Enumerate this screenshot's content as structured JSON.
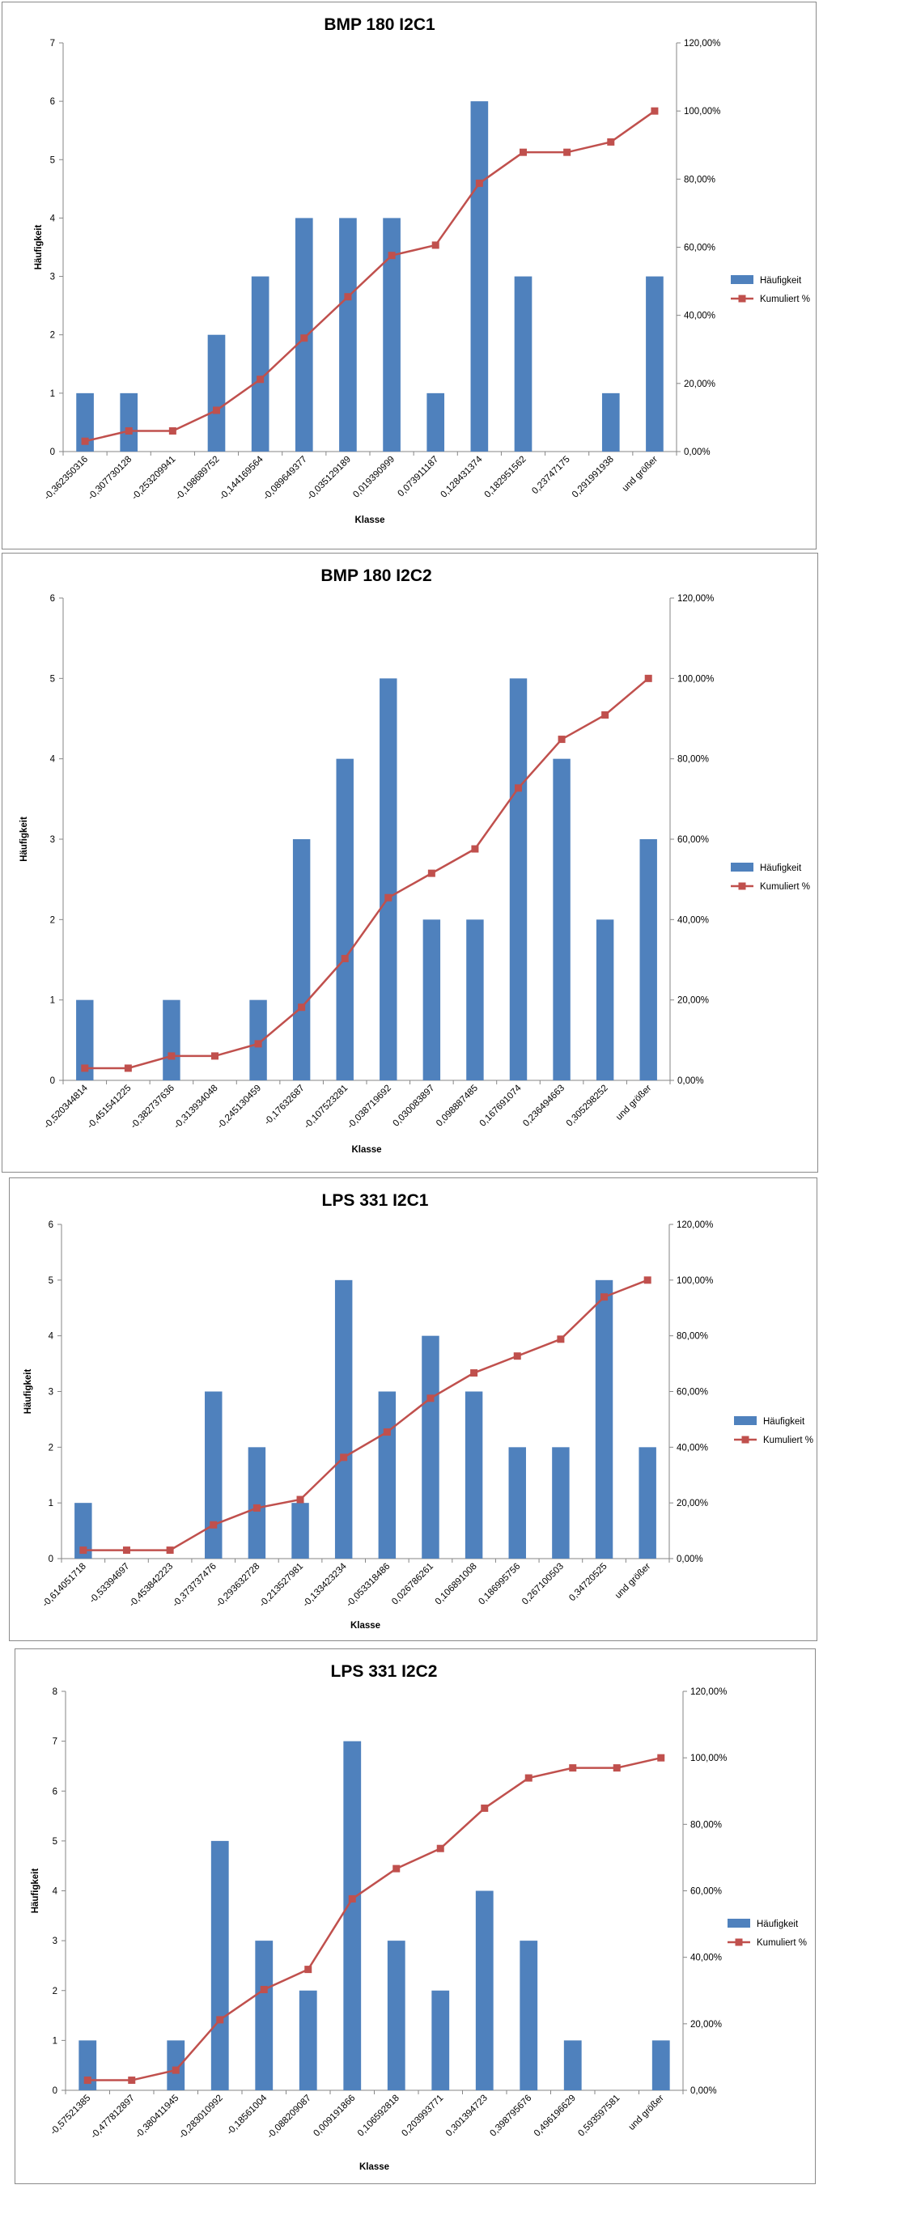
{
  "colors": {
    "bar": "#4f81bd",
    "line": "#c0504d",
    "axis": "#868686",
    "frame": "#8a8a8a"
  },
  "chart_data": [
    {
      "type": "bar+line",
      "title": "BMP 180 I2C1",
      "xlabel": "Klasse",
      "ylabel": "Häufigkeit",
      "ylim": [
        0,
        7
      ],
      "y2lim": [
        0,
        1.2
      ],
      "y_ticks": [
        "0",
        "1",
        "2",
        "3",
        "4",
        "5",
        "6",
        "7"
      ],
      "y2_ticks": [
        "0,00%",
        "20,00%",
        "40,00%",
        "60,00%",
        "80,00%",
        "100,00%",
        "120,00%"
      ],
      "categories": [
        "-0,362350316",
        "-0,307730128",
        "-0,253209941",
        "-0,198689752",
        "-0,144169564",
        "-0,089649377",
        "-0,035129189",
        "0,019390999",
        "0,073911187",
        "0,128431374",
        "0,182951562",
        "0,23747175",
        "0,291991938",
        "und größer"
      ],
      "series": [
        {
          "name": "Häufigkeit",
          "kind": "bar",
          "values": [
            1,
            1,
            0,
            2,
            3,
            4,
            4,
            4,
            1,
            6,
            3,
            0,
            1,
            3
          ]
        },
        {
          "name": "Kumuliert %",
          "kind": "line",
          "axis": "secondary",
          "values": [
            0.0303,
            0.0606,
            0.0606,
            0.1212,
            0.2121,
            0.3333,
            0.4545,
            0.5758,
            0.6061,
            0.7879,
            0.8788,
            0.8788,
            0.9091,
            1.0
          ]
        }
      ]
    },
    {
      "type": "bar+line",
      "title": "BMP 180 I2C2",
      "xlabel": "Klasse",
      "ylabel": "Häufigkeit",
      "ylim": [
        0,
        6
      ],
      "y2lim": [
        0,
        1.2
      ],
      "y_ticks": [
        "0",
        "1",
        "2",
        "3",
        "4",
        "5",
        "6"
      ],
      "y2_ticks": [
        "0,00%",
        "20,00%",
        "40,00%",
        "60,00%",
        "80,00%",
        "100,00%",
        "120,00%"
      ],
      "categories": [
        "-0,520344814",
        "-0,451541225",
        "-0,382737636",
        "-0,313934048",
        "-0,245130459",
        "-0,17632687",
        "-0,107523281",
        "-0,038719692",
        "0,030083897",
        "0,098887485",
        "0,167691074",
        "0,236494663",
        "0,305298252",
        "und größer"
      ],
      "series": [
        {
          "name": "Häufigkeit",
          "kind": "bar",
          "values": [
            1,
            0,
            1,
            0,
            1,
            3,
            4,
            5,
            2,
            2,
            5,
            4,
            2,
            3
          ]
        },
        {
          "name": "Kumuliert %",
          "kind": "line",
          "axis": "secondary",
          "values": [
            0.0303,
            0.0303,
            0.0606,
            0.0606,
            0.0909,
            0.1818,
            0.303,
            0.4545,
            0.5152,
            0.5758,
            0.7273,
            0.8485,
            0.9091,
            1.0
          ]
        }
      ]
    },
    {
      "type": "bar+line",
      "title": "LPS 331 I2C1",
      "xlabel": "Klasse",
      "ylabel": "Häufigkeit",
      "ylim": [
        0,
        6
      ],
      "y2lim": [
        0,
        1.2
      ],
      "y_ticks": [
        "0",
        "1",
        "2",
        "3",
        "4",
        "5",
        "6"
      ],
      "y2_ticks": [
        "0,00%",
        "20,00%",
        "40,00%",
        "60,00%",
        "80,00%",
        "100,00%",
        "120,00%"
      ],
      "categories": [
        "-0,614051718",
        "-0,53394697",
        "-0,453842223",
        "-0,373737476",
        "-0,293632728",
        "-0,213527981",
        "-0,133423234",
        "-0,053318486",
        "0,026786261",
        "0,106891008",
        "0,186995756",
        "0,267100503",
        "0,34720525",
        "und größer"
      ],
      "series": [
        {
          "name": "Häufigkeit",
          "kind": "bar",
          "values": [
            1,
            0,
            0,
            3,
            2,
            1,
            5,
            3,
            4,
            3,
            2,
            2,
            5,
            2
          ]
        },
        {
          "name": "Kumuliert %",
          "kind": "line",
          "axis": "secondary",
          "values": [
            0.0303,
            0.0303,
            0.0303,
            0.1212,
            0.1818,
            0.2121,
            0.3636,
            0.4545,
            0.5758,
            0.6667,
            0.7273,
            0.7879,
            0.9394,
            1.0
          ]
        }
      ]
    },
    {
      "type": "bar+line",
      "title": "LPS 331 I2C2",
      "xlabel": "Klasse",
      "ylabel": "Häufigkeit",
      "ylim": [
        0,
        8
      ],
      "y2lim": [
        0,
        1.2
      ],
      "y_ticks": [
        "0",
        "1",
        "2",
        "3",
        "4",
        "5",
        "6",
        "7",
        "8"
      ],
      "y2_ticks": [
        "0,00%",
        "20,00%",
        "40,00%",
        "60,00%",
        "80,00%",
        "100,00%",
        "120,00%"
      ],
      "categories": [
        "-0,57521385",
        "-0,477812897",
        "-0,380411945",
        "-0,283010992",
        "-0,18561004",
        "-0,088209087",
        "0,009191866",
        "0,106592818",
        "0,203993771",
        "0,301394723",
        "0,398795676",
        "0,496196629",
        "0,593597581",
        "und größer"
      ],
      "series": [
        {
          "name": "Häufigkeit",
          "kind": "bar",
          "values": [
            1,
            0,
            1,
            5,
            3,
            2,
            7,
            3,
            2,
            4,
            3,
            1,
            0,
            1
          ]
        },
        {
          "name": "Kumuliert %",
          "kind": "line",
          "axis": "secondary",
          "values": [
            0.0303,
            0.0303,
            0.0606,
            0.2121,
            0.303,
            0.3636,
            0.5758,
            0.6667,
            0.7273,
            0.8485,
            0.9394,
            0.9697,
            0.9697,
            1.0
          ]
        }
      ]
    }
  ]
}
